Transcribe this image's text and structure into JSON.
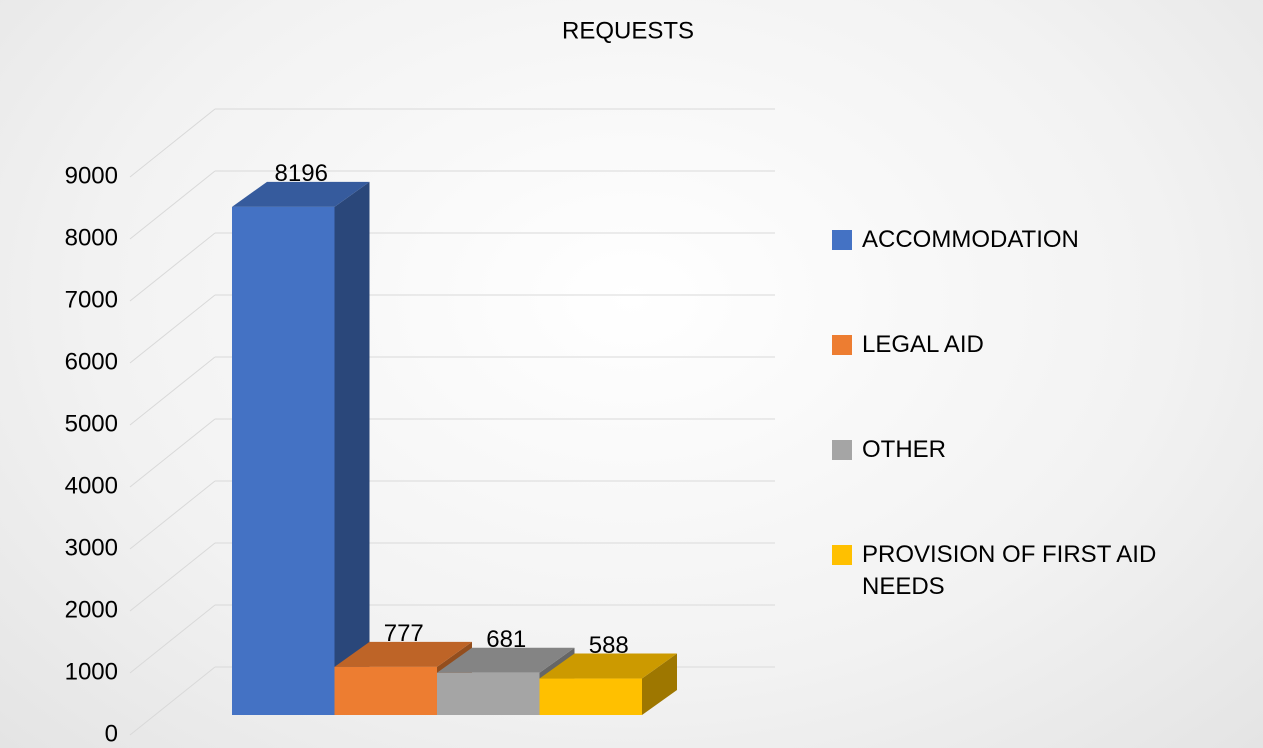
{
  "chart_data": {
    "type": "bar3d",
    "title": "REQUESTS",
    "series": [
      {
        "name": "ACCOMMODATION",
        "color": "#4472c4",
        "values": [
          8196
        ]
      },
      {
        "name": "LEGAL AID",
        "color": "#ed7d31",
        "values": [
          777
        ]
      },
      {
        "name": "OTHER",
        "color": "#a5a5a5",
        "values": [
          681
        ]
      },
      {
        "name": "PROVISION OF FIRST AID NEEDS",
        "color": "#ffc000",
        "values": [
          588
        ]
      }
    ],
    "ylim": [
      0,
      9000
    ],
    "yticks": [
      0,
      1000,
      2000,
      3000,
      4000,
      5000,
      6000,
      7000,
      8000,
      9000
    ],
    "grid": true,
    "legend": "right"
  }
}
